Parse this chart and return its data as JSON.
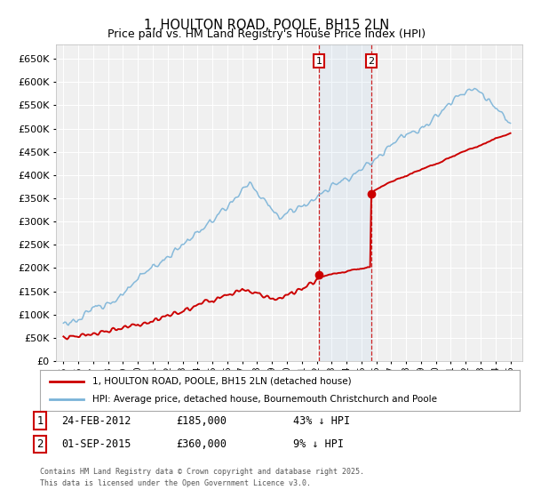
{
  "title": "1, HOULTON ROAD, POOLE, BH15 2LN",
  "subtitle": "Price paid vs. HM Land Registry's House Price Index (HPI)",
  "hpi_color": "#7ab3d8",
  "price_color": "#cc0000",
  "t1_year": 2012.15,
  "t1_price": 185000,
  "t2_year": 2015.67,
  "t2_price": 360000,
  "annotation1_date": "24-FEB-2012",
  "annotation1_price": "£185,000",
  "annotation1_hpi": "43% ↓ HPI",
  "annotation2_date": "01-SEP-2015",
  "annotation2_price": "£360,000",
  "annotation2_hpi": "9% ↓ HPI",
  "legend_label1": "1, HOULTON ROAD, POOLE, BH15 2LN (detached house)",
  "legend_label2": "HPI: Average price, detached house, Bournemouth Christchurch and Poole",
  "footnote1": "Contains HM Land Registry data © Crown copyright and database right 2025.",
  "footnote2": "This data is licensed under the Open Government Licence v3.0.",
  "background_color": "#ffffff",
  "plot_bg_color": "#f0f0f0",
  "grid_color": "#ffffff",
  "ylim_max": 680000,
  "xmin": 1994.5,
  "xmax": 2025.8
}
